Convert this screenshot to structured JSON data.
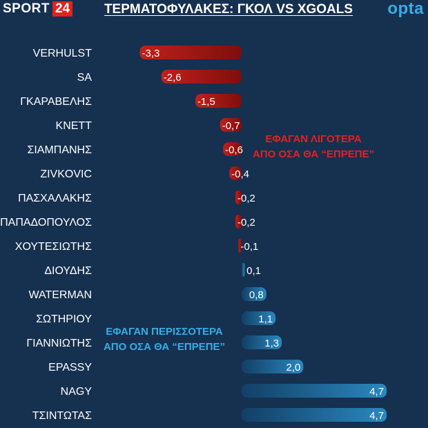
{
  "header": {
    "brand_word": "SPORT",
    "brand_number": "24",
    "title": "ΤΕΡΜΑΤΟΦΥΛΑΚΕΣ: ΓΚΟΛ VS XGOALS",
    "data_provider": "opta"
  },
  "annotations": {
    "negative_line1": "ΕΦΑΓΑΝ ΛΙΓΟΤΕΡΑ",
    "negative_line2": "ΑΠΟ ΟΣΑ ΘΑ “ΕΠΡΕΠΕ”",
    "positive_line1": "ΕΦΑΓΑΝ ΠΕΡΙΣΣΟΤΕΡΑ",
    "positive_line2": "ΑΠΟ ΟΣΑ ΘΑ “ΕΠΡΕΠΕ”"
  },
  "colors": {
    "background": "#16304f",
    "negative": "#c0201c",
    "positive": "#1f78ad",
    "negative_text": "#e3211e",
    "positive_text": "#37aee6",
    "brand": "#e3211e"
  },
  "chart_data": {
    "type": "bar",
    "orientation": "horizontal",
    "categories": [
      "VERHULST",
      "SA",
      "ΓΚΑΡΑΒΕΛΗΣ",
      "ΚΝΕΤΤ",
      "ΣΙΑΜΠΑΝΗΣ",
      "ZIVKOVIC",
      "ΠΑΣΧΑΛΑΚΗΣ",
      "ΠΑΠΑΔΟΠΟΥΛΟΣ",
      "ΧΟΥΤΕΣΙΩΤΗΣ",
      "ΔΙΟΥΔΗΣ",
      "WATERMAN",
      "ΣΩΤΗΡΙΟΥ",
      "ΓΙΑΝΝΙΩΤΗΣ",
      "EPASSY",
      "NAGY",
      "ΤΣΙΝΤΩΤΑΣ"
    ],
    "values": [
      -3.3,
      -2.6,
      -1.5,
      -0.7,
      -0.6,
      -0.4,
      -0.2,
      -0.2,
      -0.1,
      0.1,
      0.8,
      1.1,
      1.3,
      2.0,
      4.7,
      4.7
    ],
    "value_labels": [
      "-3,3",
      "-2,6",
      "-1,5",
      "-0,7",
      "-0,6",
      "-0,4",
      "-0,2",
      "-0,2",
      "-0,1",
      "0,1",
      "0,8",
      "1,1",
      "1,3",
      "2,0",
      "4,7",
      "4,7"
    ],
    "title": "ΤΕΡΜΑΤΟΦΥΛΑΚΕΣ: ΓΚΟΛ VS XGOALS",
    "xlabel": "",
    "ylabel": "",
    "xlim": [
      -3.5,
      4.8
    ],
    "grid": false,
    "legend": "none"
  }
}
